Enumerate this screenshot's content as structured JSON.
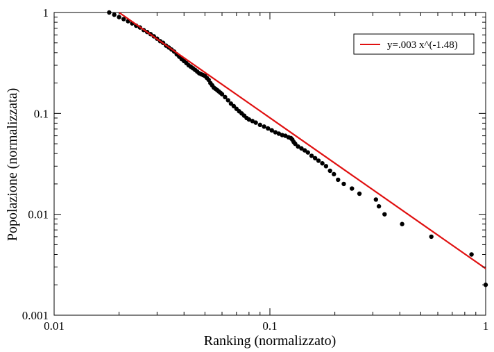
{
  "chart_data": {
    "type": "scatter",
    "xlabel": "Ranking (normalizzato)",
    "ylabel": "Popolazione (normalizzata)",
    "xscale": "log",
    "yscale": "log",
    "xlim": [
      0.01,
      1
    ],
    "ylim": [
      0.001,
      1
    ],
    "x_ticks": [
      0.01,
      0.1,
      1
    ],
    "x_tick_labels": [
      "0.01",
      "0.1",
      "1"
    ],
    "y_ticks": [
      0.001,
      0.01,
      0.1,
      1
    ],
    "y_tick_labels": [
      "0.001",
      "0.01",
      "0.1",
      "1"
    ],
    "grid": false,
    "legend": {
      "position": "top-right",
      "entries": [
        "y=.003 x^(-1.48)"
      ]
    },
    "series": [
      {
        "kind": "points",
        "color": "#000000",
        "x": [
          0.018,
          0.019,
          0.02,
          0.021,
          0.022,
          0.023,
          0.024,
          0.025,
          0.026,
          0.027,
          0.028,
          0.029,
          0.03,
          0.031,
          0.032,
          0.033,
          0.034,
          0.035,
          0.036,
          0.037,
          0.038,
          0.039,
          0.04,
          0.041,
          0.042,
          0.043,
          0.044,
          0.045,
          0.046,
          0.047,
          0.048,
          0.049,
          0.05,
          0.051,
          0.052,
          0.053,
          0.054,
          0.055,
          0.056,
          0.057,
          0.058,
          0.059,
          0.06,
          0.062,
          0.064,
          0.066,
          0.068,
          0.07,
          0.072,
          0.074,
          0.076,
          0.078,
          0.08,
          0.083,
          0.086,
          0.09,
          0.094,
          0.098,
          0.102,
          0.106,
          0.11,
          0.114,
          0.118,
          0.122,
          0.125,
          0.127,
          0.129,
          0.131,
          0.135,
          0.14,
          0.145,
          0.15,
          0.156,
          0.162,
          0.168,
          0.175,
          0.182,
          0.19,
          0.198,
          0.207,
          0.22,
          0.24,
          0.26,
          0.31,
          0.32,
          0.34,
          0.41,
          0.56,
          0.86,
          1.0
        ],
        "y": [
          1.0,
          0.95,
          0.9,
          0.86,
          0.82,
          0.78,
          0.74,
          0.71,
          0.67,
          0.64,
          0.61,
          0.58,
          0.55,
          0.52,
          0.5,
          0.47,
          0.45,
          0.43,
          0.41,
          0.385,
          0.365,
          0.345,
          0.33,
          0.315,
          0.3,
          0.29,
          0.28,
          0.27,
          0.26,
          0.25,
          0.245,
          0.24,
          0.235,
          0.225,
          0.215,
          0.2,
          0.19,
          0.18,
          0.175,
          0.17,
          0.165,
          0.16,
          0.155,
          0.145,
          0.135,
          0.125,
          0.118,
          0.111,
          0.105,
          0.1,
          0.095,
          0.09,
          0.087,
          0.084,
          0.081,
          0.077,
          0.074,
          0.071,
          0.068,
          0.065,
          0.063,
          0.061,
          0.06,
          0.058,
          0.057,
          0.055,
          0.052,
          0.05,
          0.047,
          0.045,
          0.043,
          0.041,
          0.038,
          0.036,
          0.034,
          0.032,
          0.03,
          0.027,
          0.025,
          0.022,
          0.02,
          0.018,
          0.016,
          0.014,
          0.012,
          0.01,
          0.008,
          0.006,
          0.004,
          0.002
        ]
      },
      {
        "kind": "line",
        "name": "y=.003 x^(-1.48)",
        "color": "#e01010",
        "x": [
          0.02,
          1.0
        ],
        "y": [
          1.0,
          0.0029
        ]
      }
    ]
  }
}
